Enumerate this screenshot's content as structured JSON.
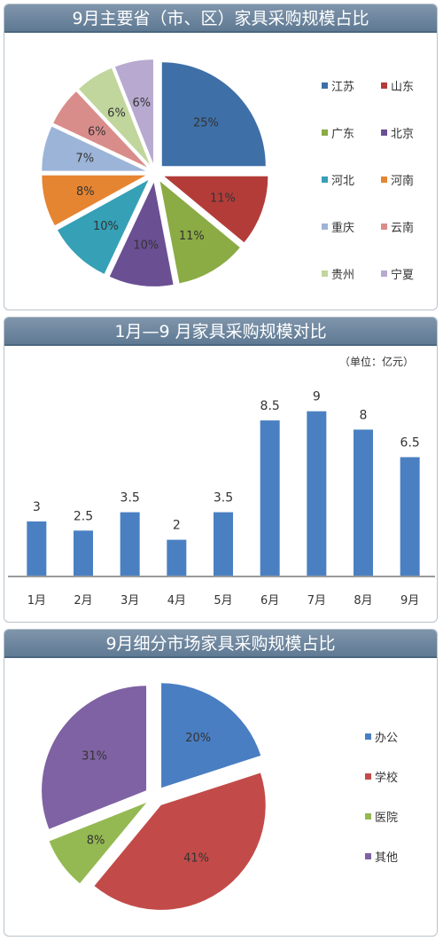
{
  "chart_data": [
    {
      "type": "pie",
      "title": "9月主要省（市、区）家具采购规模占比",
      "unit": "%",
      "legend_position": "right",
      "slices": [
        {
          "label": "江苏",
          "value": 25,
          "color": "#3e6fa7"
        },
        {
          "label": "山东",
          "value": 11,
          "color": "#b33c39"
        },
        {
          "label": "广东",
          "value": 11,
          "color": "#8bab44"
        },
        {
          "label": "北京",
          "value": 10,
          "color": "#6b4f93"
        },
        {
          "label": "河北",
          "value": 10,
          "color": "#35a0b6"
        },
        {
          "label": "河南",
          "value": 8,
          "color": "#e58532"
        },
        {
          "label": "重庆",
          "value": 7,
          "color": "#9db4d9"
        },
        {
          "label": "云南",
          "value": 6,
          "color": "#d98d8b"
        },
        {
          "label": "贵州",
          "value": 6,
          "color": "#c1d69c"
        },
        {
          "label": "宁夏",
          "value": 6,
          "color": "#b7a9cf"
        }
      ]
    },
    {
      "type": "bar",
      "title": "1月—9 月家具采购规模对比",
      "unit_note": "（单位：亿元）",
      "categories": [
        "1月",
        "2月",
        "3月",
        "4月",
        "5月",
        "6月",
        "7月",
        "8月",
        "9月"
      ],
      "values": [
        3,
        2.5,
        3.5,
        2,
        3.5,
        8.5,
        9,
        8,
        6.5
      ],
      "value_labels": [
        "3",
        "2.5",
        "3.5",
        "2",
        "3.5",
        "8.5",
        "9",
        "8",
        "6.5"
      ],
      "ylim": [
        0,
        10
      ],
      "grid": false,
      "color": "#4a80c2"
    },
    {
      "type": "pie",
      "title": "9月细分市场家具采购规模占比",
      "unit": "%",
      "legend_position": "right",
      "slices": [
        {
          "label": "办公",
          "value": 20,
          "color": "#4a7ec2"
        },
        {
          "label": "学校",
          "value": 41,
          "color": "#c24b49"
        },
        {
          "label": "医院",
          "value": 8,
          "color": "#95b952"
        },
        {
          "label": "其他",
          "value": 31,
          "color": "#7f62a3"
        }
      ]
    }
  ]
}
